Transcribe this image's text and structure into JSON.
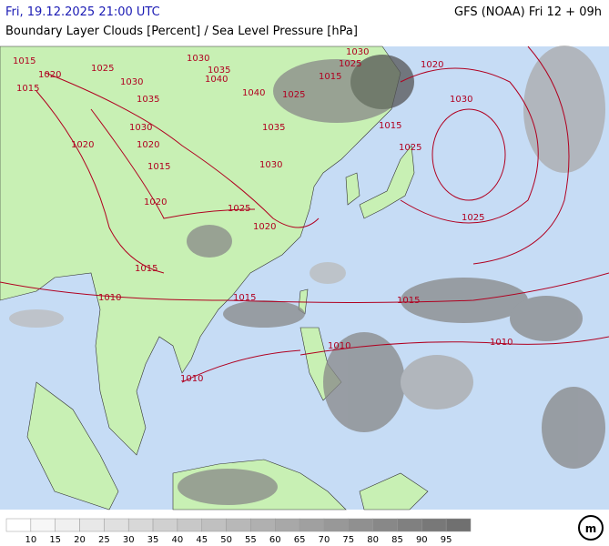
{
  "header": {
    "datetime": "Fri, 19.12.2025 21:00 UTC",
    "model": "GFS (NOAA) Fri 12 + 09h",
    "title": "Boundary Layer Clouds [Percent] / Sea Level Pressure [hPa]"
  },
  "map": {
    "isobar_labels": [
      1015,
      1025,
      1020,
      1015,
      1030,
      1035,
      1030,
      1035,
      1040,
      1040,
      1025,
      1035,
      1030,
      1020,
      1020,
      1015,
      1030,
      1020,
      1025,
      1020,
      1015,
      1010,
      1015,
      1015,
      1010,
      1010,
      1010,
      1015,
      1030,
      1025,
      1020,
      1030,
      1025,
      1015,
      1025
    ]
  },
  "legend": {
    "values": [
      10,
      15,
      20,
      25,
      30,
      35,
      40,
      45,
      50,
      55,
      60,
      65,
      70,
      75,
      80,
      85,
      90,
      95
    ],
    "colors": [
      "#ffffff",
      "#f7f7f7",
      "#f0f0f0",
      "#e8e8e8",
      "#e0e0e0",
      "#d8d8d8",
      "#d0d0d0",
      "#c8c8c8",
      "#c0c0c0",
      "#b8b8b8",
      "#b0b0b0",
      "#a8a8a8",
      "#a0a0a0",
      "#989898",
      "#909090",
      "#888888",
      "#808080",
      "#787878",
      "#707070"
    ]
  }
}
